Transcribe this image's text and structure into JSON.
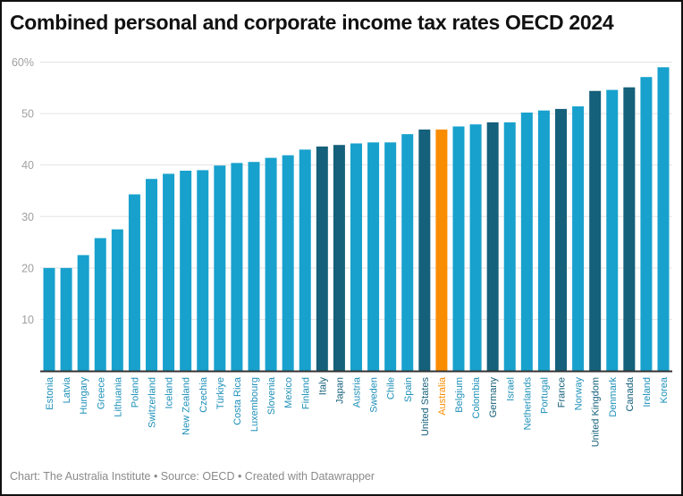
{
  "title": "Combined personal and corporate income tax rates OECD 2024",
  "footer": "Chart: The Australia Institute  • Source: OECD • Created with Datawrapper",
  "colors": {
    "default": "#18a1cd",
    "g7": "#15607a",
    "highlight": "#fa8c00",
    "default_label": "#1d8fb8",
    "g7_label": "#15607a"
  },
  "chart_data": {
    "type": "bar",
    "title": "Combined personal and corporate income tax rates OECD 2024",
    "xlabel": "",
    "ylabel": "",
    "ylim": [
      0,
      60
    ],
    "yticks": [
      10,
      20,
      30,
      40,
      50,
      60
    ],
    "ytick_labels": [
      "10",
      "20",
      "30",
      "40",
      "50",
      "60%"
    ],
    "grid": true,
    "categories": [
      "Estonia",
      "Latvia",
      "Hungary",
      "Greece",
      "Lithuania",
      "Poland",
      "Switzerland",
      "Iceland",
      "New Zealand",
      "Czechia",
      "Türkiye",
      "Costa Rica",
      "Luxembourg",
      "Slovenia",
      "Mexico",
      "Finland",
      "Italy",
      "Japan",
      "Austria",
      "Sweden",
      "Chile",
      "Spain",
      "United States",
      "Australia",
      "Belgium",
      "Colombia",
      "Germany",
      "Israel",
      "Netherlands",
      "Portugal",
      "France",
      "Norway",
      "United Kingdom",
      "Denmark",
      "Canada",
      "Ireland",
      "Korea"
    ],
    "values": [
      20.0,
      20.0,
      22.5,
      25.8,
      27.5,
      34.3,
      37.3,
      38.3,
      38.9,
      39.0,
      39.9,
      40.4,
      40.6,
      41.4,
      41.9,
      43.0,
      43.6,
      43.9,
      44.2,
      44.4,
      44.4,
      46.0,
      46.9,
      46.9,
      47.5,
      47.9,
      48.3,
      48.3,
      50.2,
      50.6,
      50.9,
      51.4,
      54.4,
      54.6,
      55.1,
      57.1,
      59.0
    ],
    "groups": [
      "default",
      "default",
      "default",
      "default",
      "default",
      "default",
      "default",
      "default",
      "default",
      "default",
      "default",
      "default",
      "default",
      "default",
      "default",
      "default",
      "g7",
      "g7",
      "default",
      "default",
      "default",
      "default",
      "g7",
      "highlight",
      "default",
      "default",
      "g7",
      "default",
      "default",
      "default",
      "g7",
      "default",
      "g7",
      "default",
      "g7",
      "default",
      "default"
    ]
  }
}
